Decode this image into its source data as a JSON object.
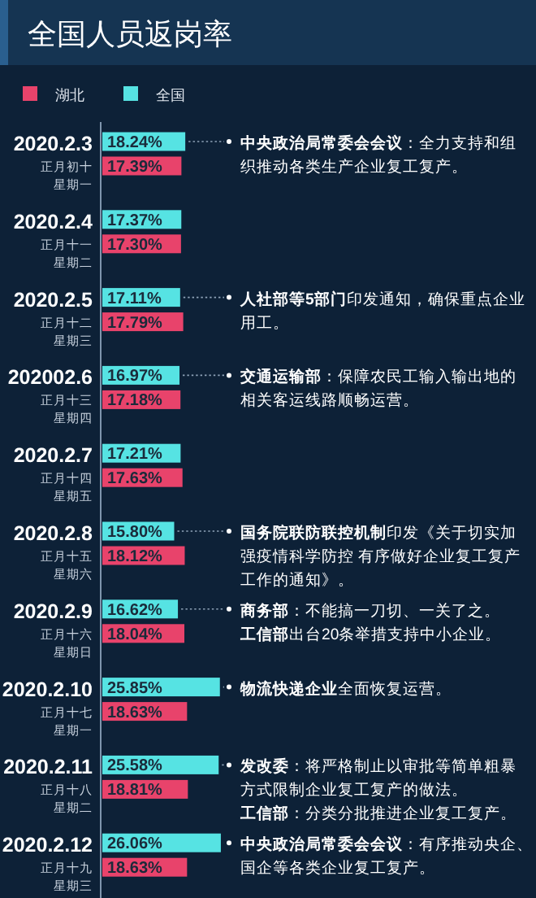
{
  "chart_data": {
    "type": "bar",
    "orientation": "horizontal",
    "title": "全国人员返岗率",
    "legend": "top left",
    "categories": [
      "2020.2.3",
      "2020.2.4",
      "2020.2.5",
      "202002.6",
      "2020.2.7",
      "2020.2.8",
      "2020.2.9",
      "2020.2.10",
      "2020.2.11",
      "2020.2.12"
    ],
    "series": [
      {
        "name": "全国",
        "color": "#56e3e3",
        "values": [
          18.24,
          17.37,
          17.11,
          16.97,
          17.21,
          15.8,
          16.62,
          25.85,
          25.58,
          26.06
        ],
        "value_labels": [
          "18.24%",
          "17.37%",
          "17.11%",
          "16.97%",
          "17.21%",
          "15.80%",
          "16.62%",
          "25.85%",
          "25.58%",
          "26.06%"
        ]
      },
      {
        "name": "湖北",
        "color": "#e8436b",
        "values": [
          17.39,
          17.3,
          17.79,
          17.18,
          17.63,
          18.12,
          18.04,
          18.63,
          18.81,
          18.63
        ],
        "value_labels": [
          "17.39%",
          "17.30%",
          "17.79%",
          "17.18%",
          "17.63%",
          "18.12%",
          "18.04%",
          "18.63%",
          "18.81%",
          "18.63%"
        ]
      }
    ],
    "annotations": [
      "正月初十星期一",
      "正月十一星期二",
      "正月十二星期三",
      "正月十三星期四",
      "正月十四星期五",
      "正月十五星期六",
      "正月十六星期日",
      "正月十七星期一",
      "正月十八星期二",
      "正月十九星期三",
      "**中央政治局常委会会议**：全力支持和组织推动各类生产企业复工复产。",
      "**人社部等5部门**印发通知，确保重点企业用工。",
      "**交通运输部**：保障农民工输入输出地的相关客运线路顺畅运营。",
      "**国务院联防联控机制**印发《关于切实加强疫情科学防控 有序做好企业复工复产工作的通知》。",
      "**商务部**：不能搞一刀切、一关了之。",
      "**工信部**出台20条举措支持中小企业。",
      "**物流快递企业**全面恢复运营。",
      "**发改委**：将严格制止以审批等简单粗暴方式限制企业复工复产的做法。",
      "**工信部**：分类分批推进企业复工复产。",
      "**中央政治局常委会会议**：有序推动央企、国企等各类企业复工复产。"
    ]
  }
}
